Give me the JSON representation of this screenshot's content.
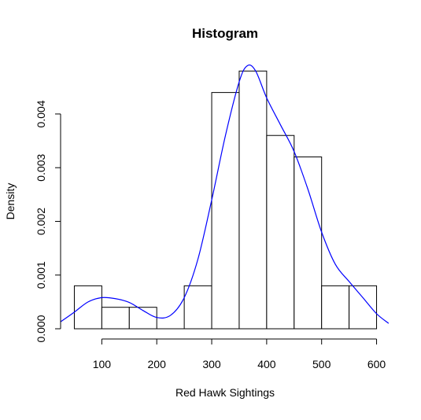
{
  "chart_data": {
    "type": "bar",
    "title": "Histogram",
    "xlabel": "Red Hawk Sightings",
    "ylabel": "Density",
    "xlim": [
      25,
      625
    ],
    "ylim": [
      0,
      0.0052
    ],
    "grid": false,
    "bins": [
      {
        "start": 50,
        "end": 100,
        "density": 0.0008
      },
      {
        "start": 100,
        "end": 150,
        "density": 0.0004
      },
      {
        "start": 150,
        "end": 200,
        "density": 0.0004
      },
      {
        "start": 200,
        "end": 250,
        "density": 0.0
      },
      {
        "start": 250,
        "end": 300,
        "density": 0.0008
      },
      {
        "start": 300,
        "end": 350,
        "density": 0.0044
      },
      {
        "start": 350,
        "end": 400,
        "density": 0.0048
      },
      {
        "start": 400,
        "end": 450,
        "density": 0.0036
      },
      {
        "start": 450,
        "end": 500,
        "density": 0.0032
      },
      {
        "start": 500,
        "end": 550,
        "density": 0.0008
      },
      {
        "start": 550,
        "end": 600,
        "density": 0.0008
      }
    ],
    "x_ticks": [
      100,
      200,
      300,
      400,
      500,
      600
    ],
    "x_tick_labels": [
      "100",
      "200",
      "300",
      "400",
      "500",
      "600"
    ],
    "y_ticks": [
      0,
      0.001,
      0.002,
      0.003,
      0.004
    ],
    "y_tick_labels": [
      "0.000",
      "0.001",
      "0.002",
      "0.003",
      "0.004"
    ],
    "density_curve": {
      "color": "#0000ff",
      "points": [
        [
          25,
          0.00013
        ],
        [
          50,
          0.00031
        ],
        [
          75,
          0.0005
        ],
        [
          100,
          0.00058
        ],
        [
          125,
          0.00056
        ],
        [
          150,
          0.00049
        ],
        [
          175,
          0.00034
        ],
        [
          200,
          0.00021
        ],
        [
          225,
          0.00025
        ],
        [
          250,
          0.00058
        ],
        [
          275,
          0.0013
        ],
        [
          300,
          0.0024
        ],
        [
          325,
          0.0036
        ],
        [
          350,
          0.0046
        ],
        [
          365,
          0.0049
        ],
        [
          380,
          0.0048
        ],
        [
          400,
          0.0043
        ],
        [
          425,
          0.0038
        ],
        [
          450,
          0.0033
        ],
        [
          475,
          0.0026
        ],
        [
          500,
          0.0018
        ],
        [
          525,
          0.0012
        ],
        [
          550,
          0.00088
        ],
        [
          575,
          0.00058
        ],
        [
          600,
          0.00028
        ],
        [
          622,
          0.0001
        ]
      ]
    },
    "bar_fill": "#ffffff",
    "bar_stroke": "#000000"
  }
}
